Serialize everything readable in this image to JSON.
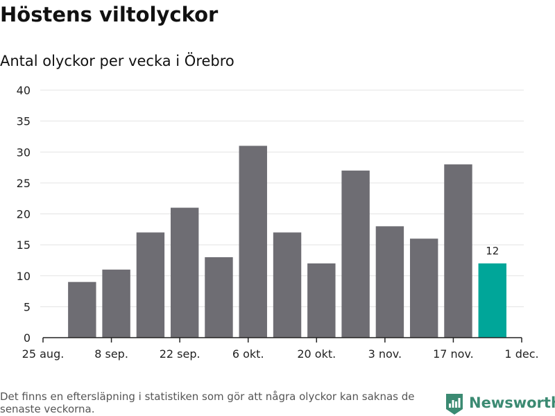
{
  "title": "Höstens viltolyckor",
  "subtitle": "Antal olyckor per vecka i Örebro",
  "footnote": "Det finns en eftersläpning i statistiken som gör att några olyckor kan saknas de senaste veckorna.",
  "brand": {
    "name": "Newsworthy",
    "icon": "newsworthy-logo-icon",
    "color": "#3b8a72"
  },
  "chart_data": {
    "type": "bar",
    "title": "Antal olyckor per vecka i Örebro",
    "xlabel": "",
    "ylabel": "",
    "x": [
      "2019-09-02",
      "2019-09-09",
      "2019-09-16",
      "2019-09-23",
      "2019-09-30",
      "2019-10-07",
      "2019-10-14",
      "2019-10-21",
      "2019-10-28",
      "2019-11-04",
      "2019-11-11",
      "2019-11-18",
      "2019-11-25"
    ],
    "values": [
      9,
      11,
      17,
      21,
      13,
      31,
      17,
      12,
      27,
      18,
      16,
      28,
      12
    ],
    "highlight_index": 12,
    "highlight_label": "12",
    "ylim": [
      0,
      40
    ],
    "yticks": [
      0,
      5,
      10,
      15,
      20,
      25,
      30,
      35,
      40
    ],
    "xticks": [
      "25 aug.",
      "8 sep.",
      "22 sep.",
      "6 okt.",
      "20 okt.",
      "3 nov.",
      "17 nov.",
      "1 dec."
    ],
    "grid": true,
    "legend": "none",
    "colors": {
      "bar": "#6e6d73",
      "highlight": "#00a699",
      "grid": "#e3e3e3",
      "axis": "#222222"
    }
  }
}
